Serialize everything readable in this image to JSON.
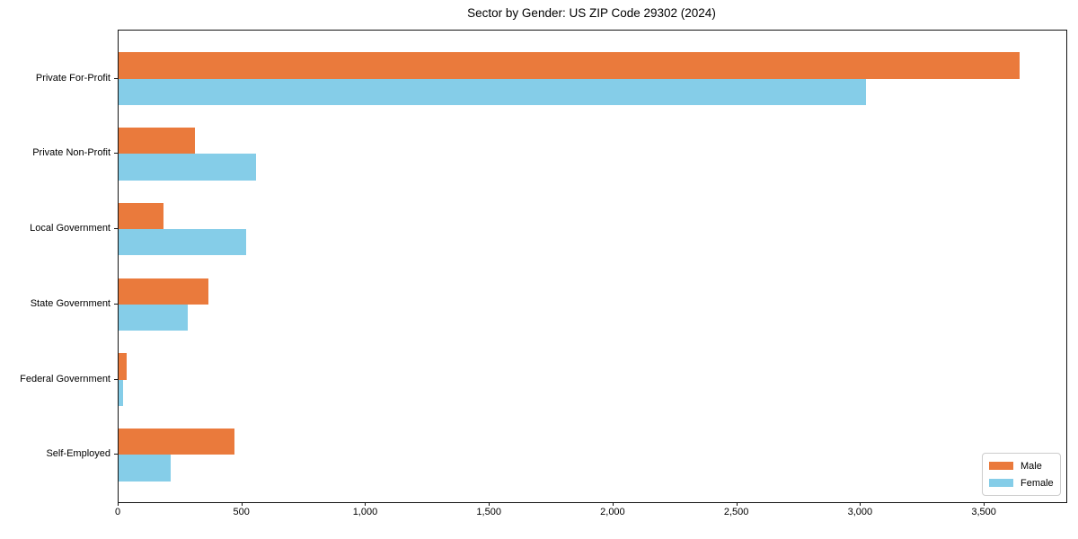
{
  "chart_data": {
    "type": "bar",
    "orientation": "horizontal",
    "title": "Sector by Gender: US ZIP Code 29302 (2024)",
    "categories": [
      "Private For-Profit",
      "Private Non-Profit",
      "Local Government",
      "State Government",
      "Federal Government",
      "Self-Employed"
    ],
    "series": [
      {
        "name": "Male",
        "color": "#EA7A3C",
        "values": [
          3640,
          308,
          181,
          363,
          33,
          468
        ]
      },
      {
        "name": "Female",
        "color": "#85CDE8",
        "values": [
          3019,
          556,
          514,
          278,
          18,
          209
        ]
      }
    ],
    "xlabel": "",
    "ylabel": "",
    "xlim": [
      0,
      3830
    ],
    "x_ticks": [
      0,
      500,
      1000,
      1500,
      2000,
      2500,
      3000,
      3500
    ],
    "x_tick_labels": [
      "0",
      "500",
      "1,000",
      "1,500",
      "2,000",
      "2,500",
      "3,000",
      "3,500"
    ],
    "grid": false,
    "legend": {
      "position": "lower-right",
      "entries": [
        {
          "label": "Male",
          "color": "#EA7A3C"
        },
        {
          "label": "Female",
          "color": "#85CDE8"
        }
      ]
    },
    "colors": {
      "axis": "#141414",
      "background": "#FFFFFF"
    }
  }
}
